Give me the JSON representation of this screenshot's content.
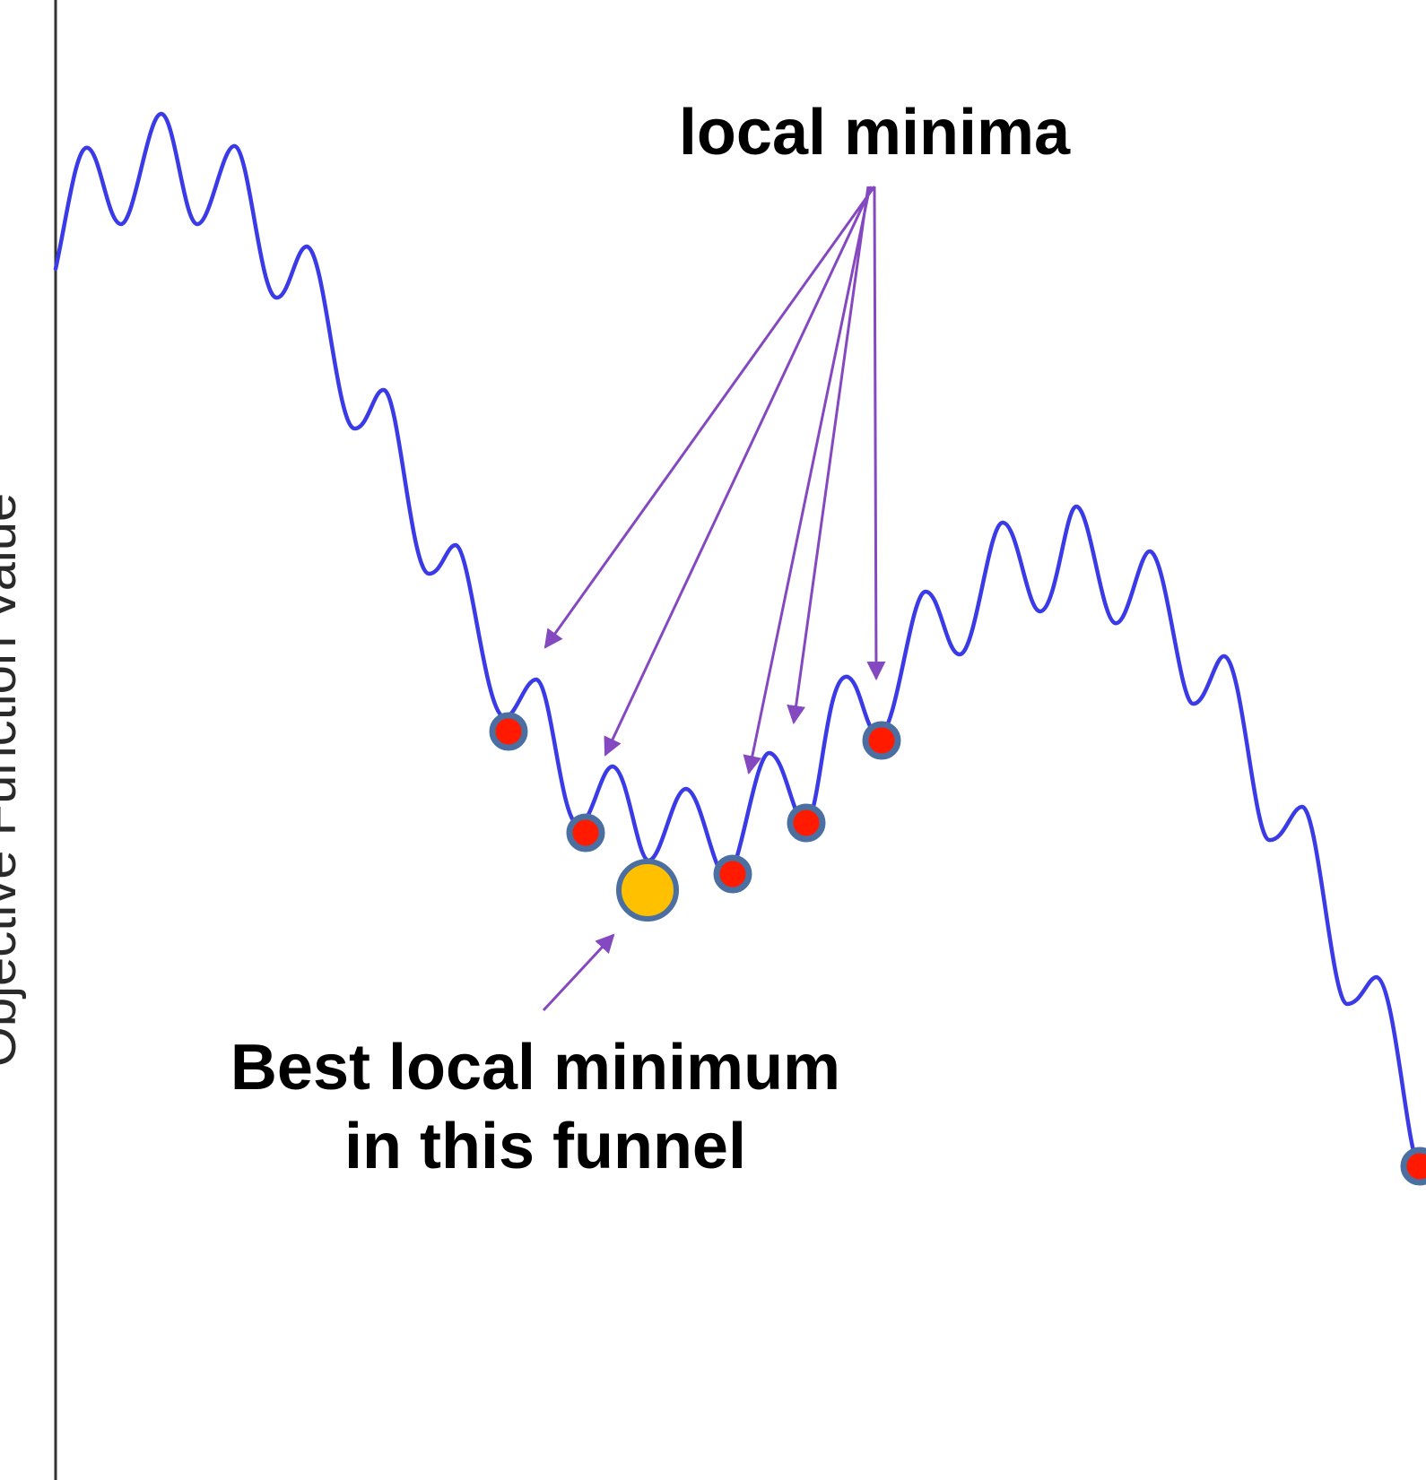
{
  "labels": {
    "local_minima": "local minima",
    "best_line1": "Best local minimum",
    "best_line2": "in this funnel",
    "y_axis": "Objective Function Value"
  },
  "colors": {
    "curve": "#3a3ae6",
    "arrow": "#8448c0",
    "minimum_fill": "#ff1a00",
    "minimum_stroke": "#4a6fa0",
    "best_fill": "#ffc000",
    "axis": "#333333"
  }
}
